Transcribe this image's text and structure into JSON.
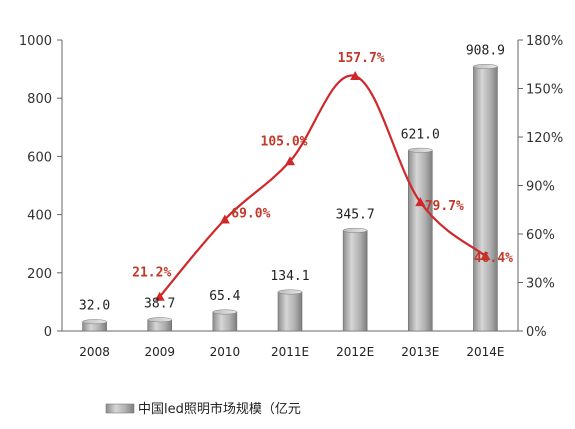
{
  "chart_data": {
    "type": "bar",
    "categories": [
      "2008",
      "2009",
      "2010",
      "2011E",
      "2012E",
      "2013E",
      "2014E"
    ],
    "series": [
      {
        "name": "中国led照明市场规模（亿元",
        "type": "bar",
        "axis": "left",
        "values": [
          32.0,
          38.7,
          65.4,
          134.1,
          345.7,
          621.0,
          908.9
        ],
        "labels": [
          "32.0",
          "38.7",
          "65.4",
          "134.1",
          "345.7",
          "621.0",
          "908.9"
        ]
      },
      {
        "type": "line",
        "axis": "right",
        "values": [
          null,
          21.2,
          69.0,
          105.0,
          157.7,
          79.7,
          46.4
        ],
        "labels": [
          "",
          "21.2%",
          "69.0%",
          "105.0%",
          "157.7%",
          "79.7%",
          "46.4%"
        ]
      }
    ],
    "left_axis": {
      "ylim": [
        0,
        1000
      ],
      "ticks": [
        "0",
        "200",
        "400",
        "600",
        "800",
        "1000"
      ]
    },
    "right_axis": {
      "ylim": [
        0,
        180
      ],
      "ticks": [
        "0%",
        "30%",
        "60%",
        "90%",
        "120%",
        "150%",
        "180%"
      ]
    },
    "grid": false,
    "legend": {
      "position": "bottom",
      "label": "中国led照明市场规模（亿元"
    },
    "colors": {
      "bar": "#a8a8a8",
      "bar_dark": "#7a7a7a",
      "line": "#d0282a",
      "line_label": "#c0392b"
    }
  }
}
